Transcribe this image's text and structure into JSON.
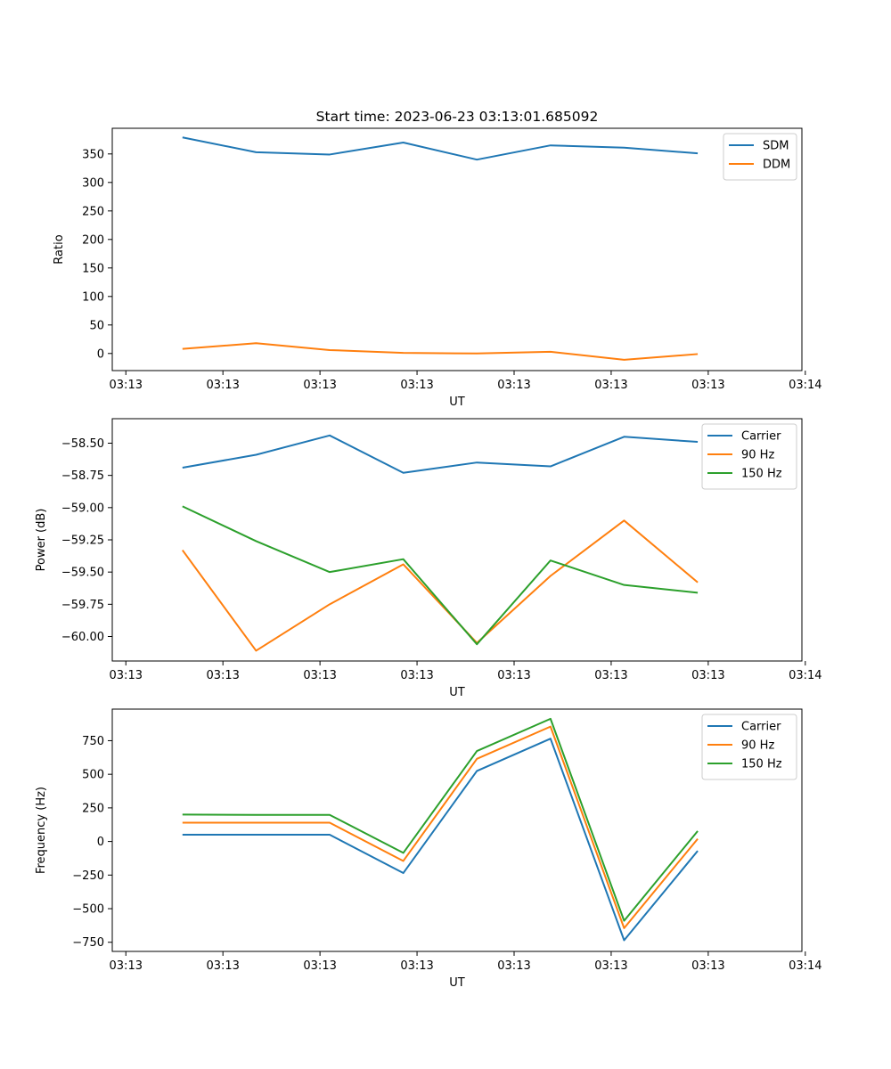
{
  "chart_data": [
    {
      "type": "line",
      "title": "Start time: 2023-06-23 03:13:01.685092",
      "xlabel": "UT",
      "ylabel": "Ratio",
      "ylim": [
        -30,
        395
      ],
      "yticks": [
        0,
        50,
        100,
        150,
        200,
        250,
        300,
        350
      ],
      "ytick_labels": [
        "0",
        "50",
        "100",
        "150",
        "200",
        "250",
        "300",
        "350"
      ],
      "xtick_labels": [
        "03:13",
        "03:13",
        "03:13",
        "03:13",
        "03:13",
        "03:13",
        "03:13",
        "03:14"
      ],
      "x": [
        0.5,
        1.15,
        1.8,
        2.45,
        3.1,
        3.75,
        4.4,
        5.05
      ],
      "xlim": [
        -0.12,
        5.97
      ],
      "grid": false,
      "legend_position": "top-right",
      "series": [
        {
          "name": "SDM",
          "color": "#1f77b4",
          "values": [
            379,
            353,
            349,
            370,
            340,
            365,
            361,
            351
          ]
        },
        {
          "name": "DDM",
          "color": "#ff7f0e",
          "values": [
            8,
            18,
            6,
            1,
            0,
            3,
            -11,
            -1
          ]
        }
      ]
    },
    {
      "type": "line",
      "title": "",
      "xlabel": "UT",
      "ylabel": "Power (dB)",
      "ylim": [
        -60.19,
        -58.31
      ],
      "yticks": [
        -60.0,
        -59.75,
        -59.5,
        -59.25,
        -59.0,
        -58.75,
        -58.5
      ],
      "ytick_labels": [
        "−60.00",
        "−59.75",
        "−59.50",
        "−59.25",
        "−59.00",
        "−58.75",
        "−58.50"
      ],
      "xtick_labels": [
        "03:13",
        "03:13",
        "03:13",
        "03:13",
        "03:13",
        "03:13",
        "03:13",
        "03:14"
      ],
      "x": [
        0.5,
        1.15,
        1.8,
        2.45,
        3.1,
        3.75,
        4.4,
        5.05
      ],
      "xlim": [
        -0.12,
        5.97
      ],
      "grid": false,
      "legend_position": "top-right",
      "series": [
        {
          "name": "Carrier",
          "color": "#1f77b4",
          "values": [
            -58.69,
            -58.59,
            -58.44,
            -58.73,
            -58.65,
            -58.68,
            -58.45,
            -58.49
          ]
        },
        {
          "name": "90 Hz",
          "color": "#ff7f0e",
          "values": [
            -59.33,
            -60.11,
            -59.75,
            -59.44,
            -60.05,
            -59.53,
            -59.1,
            -59.58
          ]
        },
        {
          "name": "150 Hz",
          "color": "#2ca02c",
          "values": [
            -58.99,
            -59.26,
            -59.5,
            -59.4,
            -60.06,
            -59.41,
            -59.6,
            -59.66
          ]
        }
      ]
    },
    {
      "type": "line",
      "title": "",
      "xlabel": "UT",
      "ylabel": "Frequency (Hz)",
      "ylim": [
        -818,
        985
      ],
      "yticks": [
        -750,
        -500,
        -250,
        0,
        250,
        500,
        750
      ],
      "ytick_labels": [
        "−750",
        "−500",
        "−250",
        "0",
        "250",
        "500",
        "750"
      ],
      "xtick_labels": [
        "03:13",
        "03:13",
        "03:13",
        "03:13",
        "03:13",
        "03:13",
        "03:13",
        "03:14"
      ],
      "x": [
        0.5,
        1.15,
        1.8,
        2.45,
        3.1,
        3.75,
        4.4,
        5.05
      ],
      "xlim": [
        -0.12,
        5.97
      ],
      "grid": false,
      "legend_position": "top-right",
      "series": [
        {
          "name": "Carrier",
          "color": "#1f77b4",
          "values": [
            50,
            50,
            50,
            -235,
            525,
            765,
            -735,
            -70
          ]
        },
        {
          "name": "90 Hz",
          "color": "#ff7f0e",
          "values": [
            140,
            140,
            140,
            -145,
            615,
            855,
            -645,
            20
          ]
        },
        {
          "name": "150 Hz",
          "color": "#2ca02c",
          "values": [
            200,
            198,
            198,
            -85,
            673,
            913,
            -590,
            78
          ]
        }
      ]
    }
  ]
}
